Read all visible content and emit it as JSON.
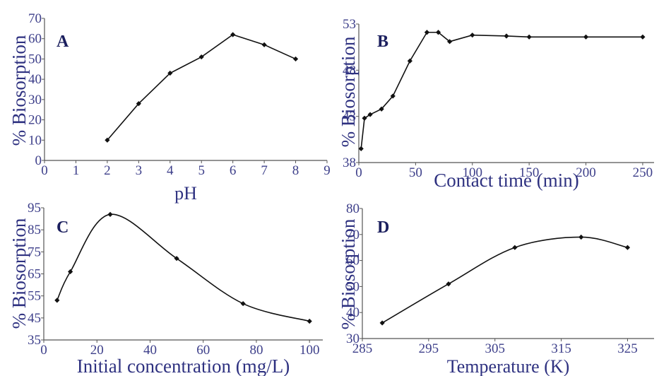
{
  "chart_data": [
    {
      "type": "line",
      "panel": "A",
      "xlabel": "pH",
      "ylabel": "% Biosorption",
      "xlim": [
        0,
        9
      ],
      "ylim": [
        0,
        70
      ],
      "xticks": [
        0,
        1,
        2,
        3,
        4,
        5,
        6,
        7,
        8,
        9
      ],
      "yticks": [
        0,
        10,
        20,
        30,
        40,
        50,
        60,
        70
      ],
      "smooth": false,
      "series": [
        {
          "x": [
            2,
            3,
            4,
            5,
            6,
            7,
            8
          ],
          "y": [
            10,
            28,
            43,
            51,
            62,
            57,
            50
          ]
        }
      ]
    },
    {
      "type": "line",
      "panel": "B",
      "xlabel": "Contact time (min)",
      "ylabel": "% Biosorption",
      "xlim": [
        0,
        260
      ],
      "ylim": [
        38,
        53
      ],
      "xticks": [
        0,
        50,
        100,
        150,
        200,
        250
      ],
      "yticks": [
        38,
        43,
        48,
        53
      ],
      "smooth": false,
      "series": [
        {
          "x": [
            2,
            5,
            10,
            20,
            30,
            45,
            60,
            70,
            80,
            100,
            130,
            150,
            200,
            250
          ],
          "y": [
            39.5,
            42.8,
            43.2,
            43.8,
            45.2,
            49,
            52.1,
            52.1,
            51.1,
            51.8,
            51.7,
            51.6,
            51.6,
            51.6
          ]
        }
      ]
    },
    {
      "type": "line",
      "panel": "C",
      "xlabel": "Initial concentration (mg/L)",
      "ylabel": "% Biosorption",
      "xlim": [
        0,
        105
      ],
      "ylim": [
        35,
        95
      ],
      "xticks": [
        0,
        20,
        40,
        60,
        80,
        100
      ],
      "yticks": [
        35,
        45,
        55,
        65,
        75,
        85,
        95
      ],
      "smooth": true,
      "series": [
        {
          "x": [
            5,
            10,
            25,
            50,
            75,
            100
          ],
          "y": [
            53,
            66,
            92,
            72,
            51.5,
            43.5
          ]
        }
      ]
    },
    {
      "type": "line",
      "panel": "D",
      "xlabel": "Temperature (K)",
      "ylabel": "% Biosorption",
      "xlim": [
        285,
        329
      ],
      "ylim": [
        30,
        80
      ],
      "xticks": [
        285,
        295,
        305,
        315,
        325
      ],
      "yticks": [
        30,
        40,
        50,
        60,
        70,
        80
      ],
      "smooth": true,
      "series": [
        {
          "x": [
            288,
            298,
            308,
            318,
            325
          ],
          "y": [
            36,
            51,
            65,
            69,
            65
          ]
        }
      ]
    }
  ]
}
